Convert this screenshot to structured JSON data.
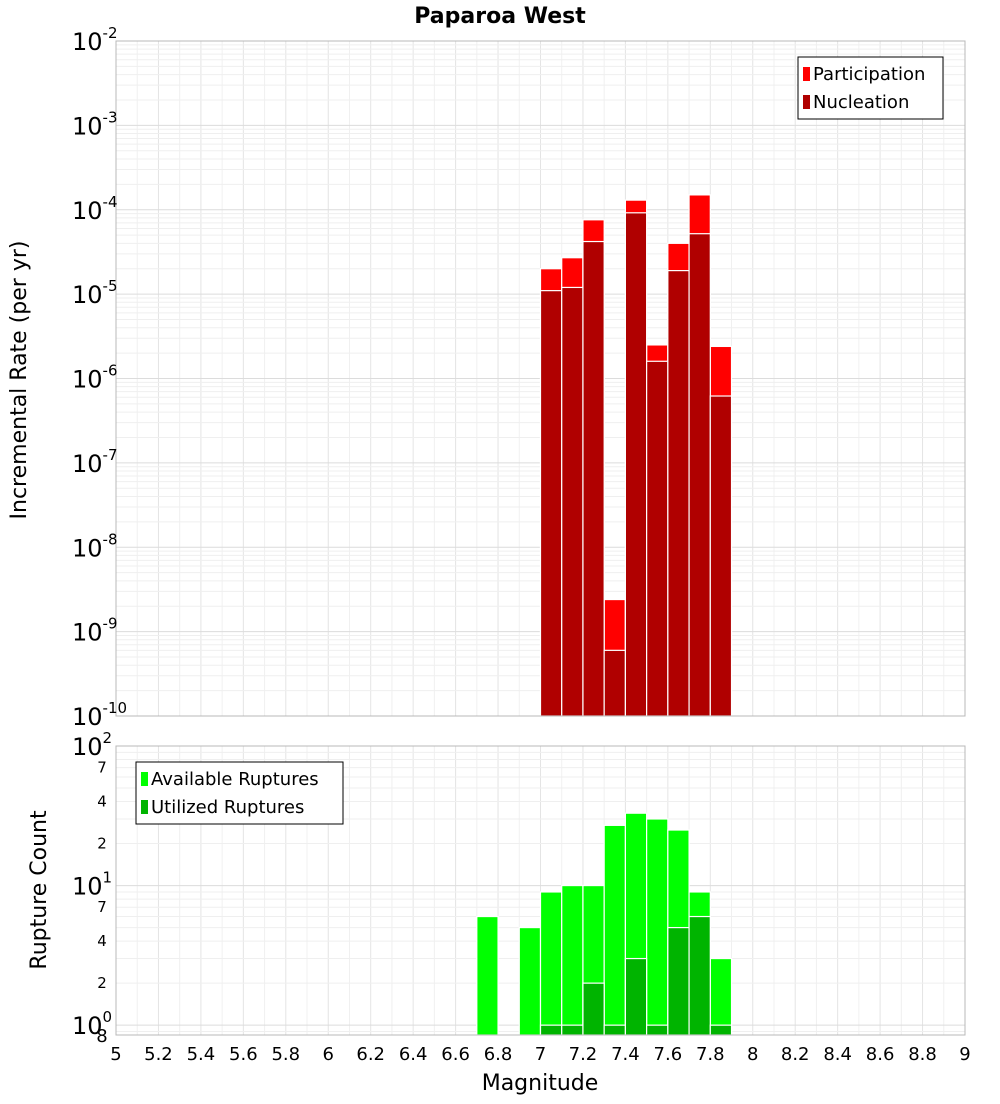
{
  "chart_data": {
    "title": "Paparoa West",
    "xlabel": "Magnitude",
    "xlim": [
      5,
      9
    ],
    "x_ticks": [
      "5",
      "5.2",
      "5.4",
      "5.6",
      "5.8",
      "6",
      "6.2",
      "6.4",
      "6.6",
      "6.8",
      "7",
      "7.2",
      "7.4",
      "7.6",
      "7.8",
      "8",
      "8.2",
      "8.4",
      "8.6",
      "8.8",
      "9"
    ],
    "grid": true,
    "panels": [
      {
        "type": "bar",
        "ylabel": "Incremental Rate (per yr)",
        "yscale": "log",
        "ylim": [
          1e-10,
          0.01
        ],
        "y_ticks": [
          {
            "base": "10",
            "exp": "-2"
          },
          {
            "base": "10",
            "exp": "-3"
          },
          {
            "base": "10",
            "exp": "-4"
          },
          {
            "base": "10",
            "exp": "-5"
          },
          {
            "base": "10",
            "exp": "-6"
          },
          {
            "base": "10",
            "exp": "-7"
          },
          {
            "base": "10",
            "exp": "-8"
          },
          {
            "base": "10",
            "exp": "-9"
          },
          {
            "base": "10",
            "exp": "-10"
          }
        ],
        "legend_position": "top-right",
        "x": [
          7.0,
          7.1,
          7.2,
          7.3,
          7.4,
          7.5,
          7.6,
          7.7,
          7.8
        ],
        "series": [
          {
            "name": "Participation",
            "color": "#ff0000",
            "values": [
              2e-05,
              2.7e-05,
              7.6e-05,
              2.4e-09,
              0.00013,
              2.5e-06,
              4e-05,
              0.00015,
              2.4e-06
            ]
          },
          {
            "name": "Nucleation",
            "color": "#b00000",
            "values": [
              1.1e-05,
              1.2e-05,
              4.2e-05,
              6e-10,
              9.2e-05,
              1.6e-06,
              1.9e-05,
              5.2e-05,
              6.2e-07
            ]
          }
        ]
      },
      {
        "type": "bar",
        "ylabel": "Rupture Count",
        "yscale": "log",
        "ylim": [
          0.85,
          100
        ],
        "y_ticks": [
          {
            "base": "10",
            "exp": "2"
          },
          {
            "base": "10",
            "exp": "1"
          },
          {
            "base": "10",
            "exp": "0"
          }
        ],
        "y_minor_ticks": [
          {
            "value": 70,
            "label": "7"
          },
          {
            "value": 40,
            "label": "4"
          },
          {
            "value": 20,
            "label": "2"
          },
          {
            "value": 7,
            "label": "7"
          },
          {
            "value": 4,
            "label": "4"
          },
          {
            "value": 2,
            "label": "2"
          }
        ],
        "y_bottom_label": "8",
        "legend_position": "top-left",
        "x": [
          6.7,
          6.8,
          6.9,
          7.0,
          7.1,
          7.2,
          7.3,
          7.4,
          7.5,
          7.6,
          7.7,
          7.8
        ],
        "series": [
          {
            "name": "Available Ruptures",
            "color": "#00ff00",
            "values": [
              6,
              0,
              5,
              9,
              10,
              10,
              27,
              33,
              30,
              25,
              9,
              3
            ]
          },
          {
            "name": "Utilized Ruptures",
            "color": "#00b400",
            "values": [
              0,
              0,
              0,
              1,
              1,
              2,
              1,
              3,
              1,
              5,
              6,
              1
            ]
          }
        ]
      }
    ]
  }
}
